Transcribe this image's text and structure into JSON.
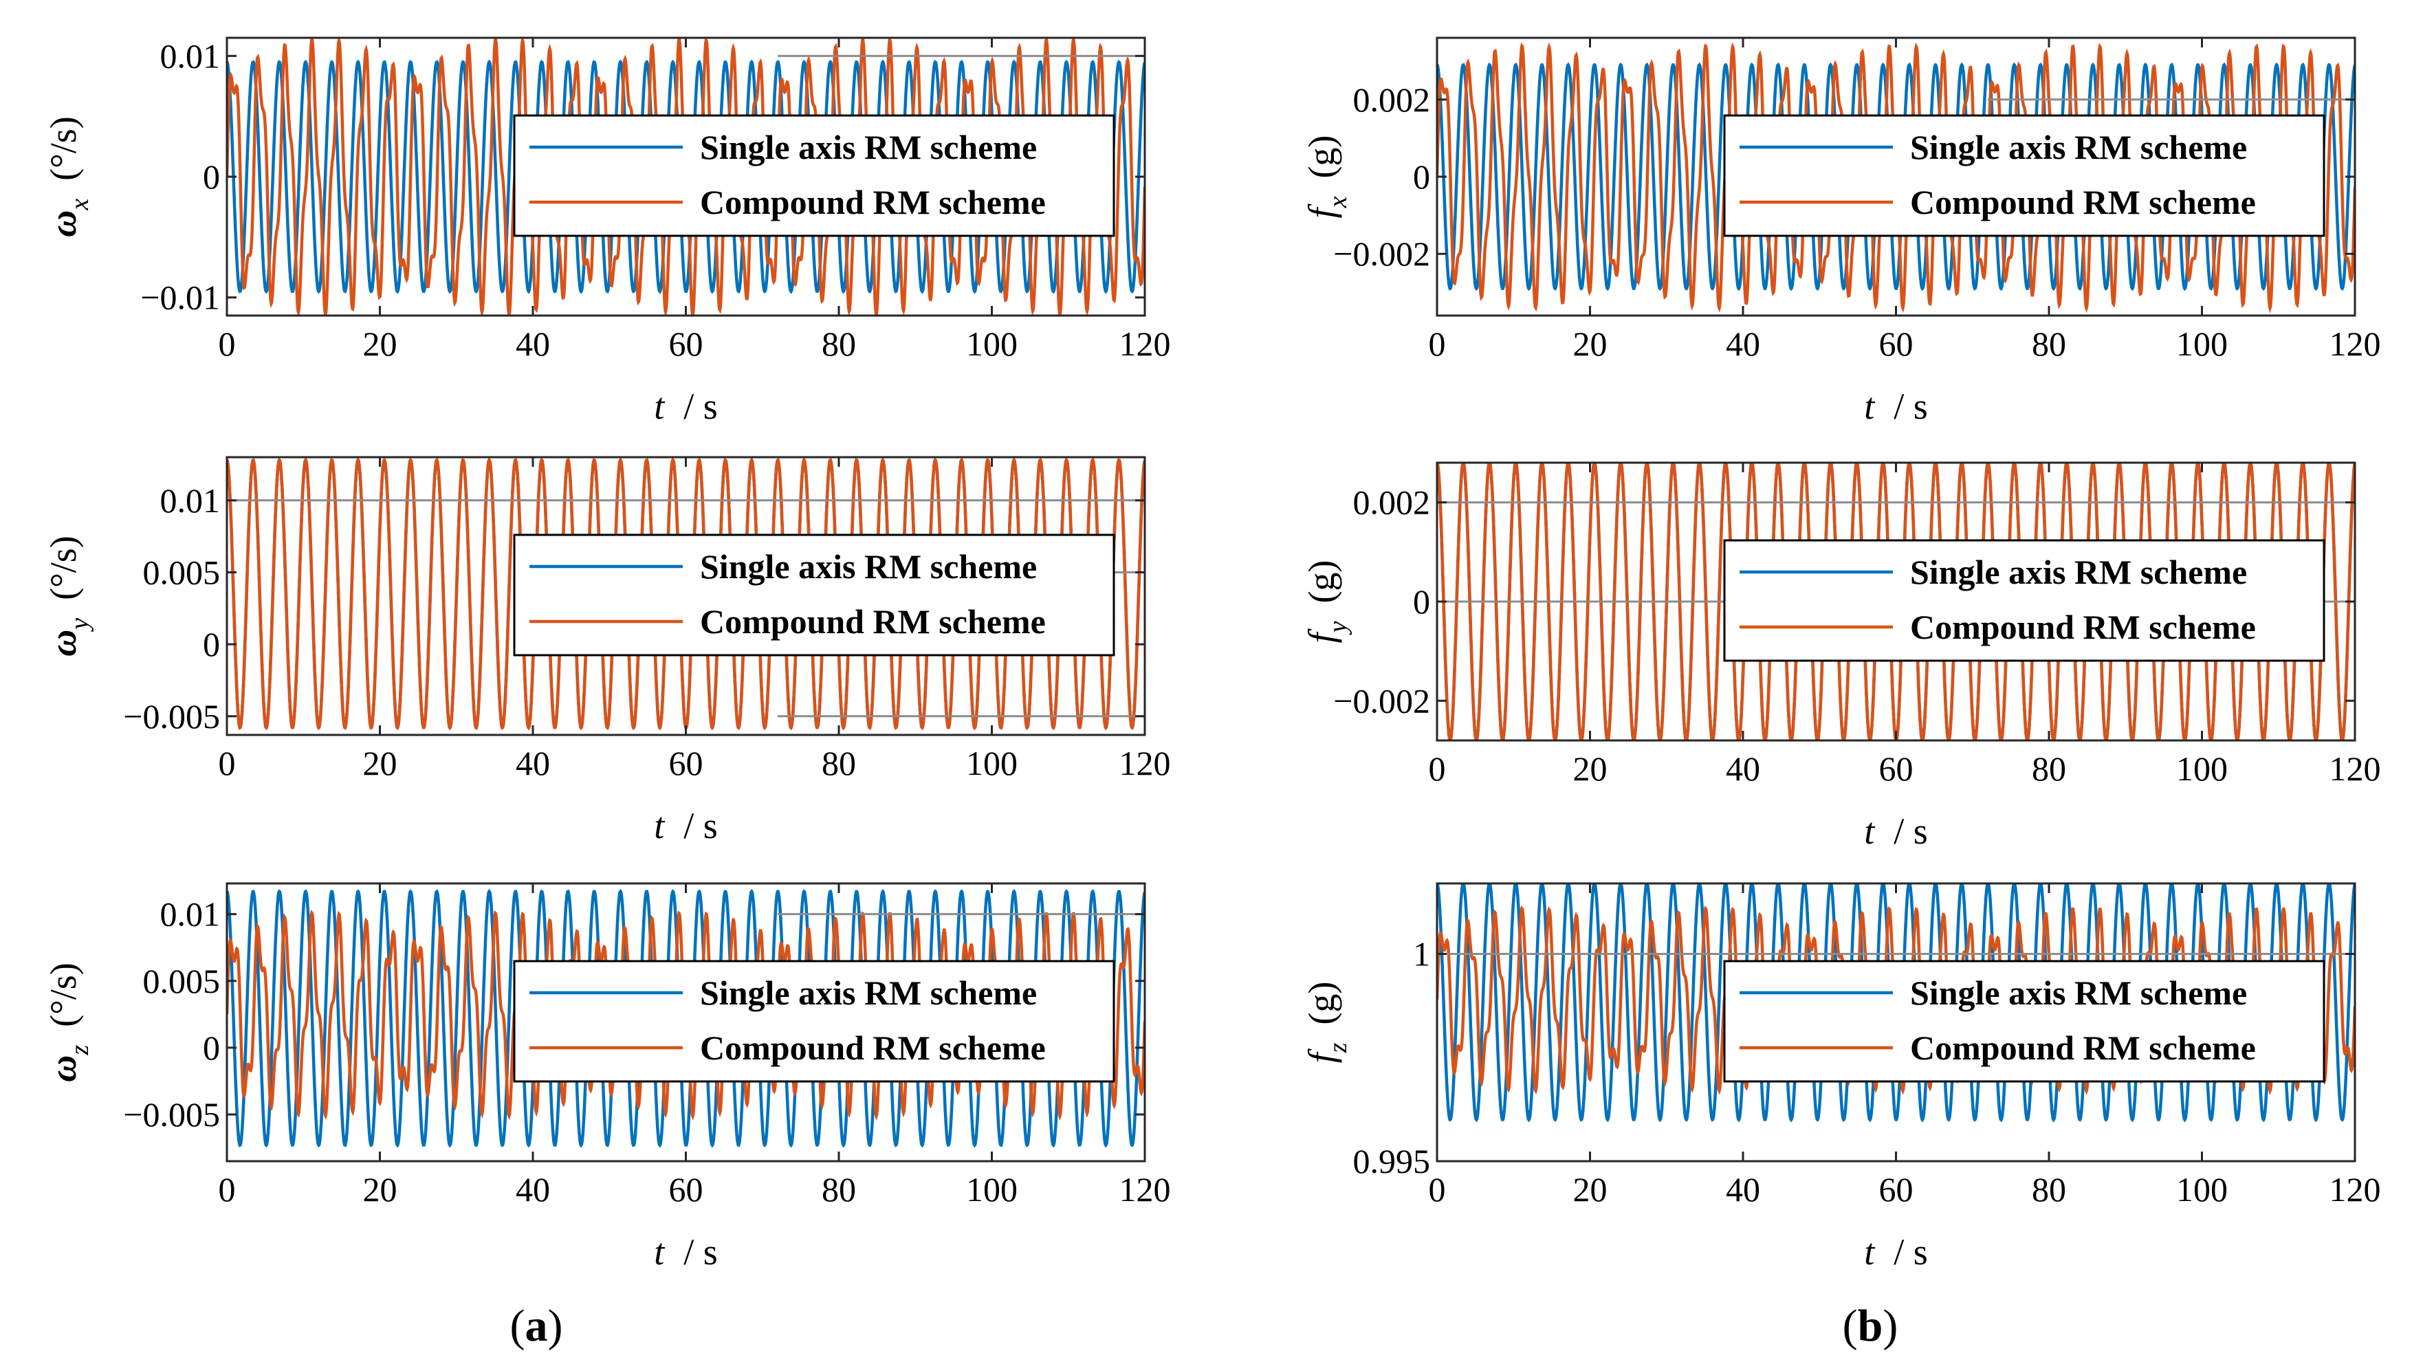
{
  "chart_data": [
    {
      "id": "wx",
      "type": "line",
      "column": "a",
      "ylabel": {
        "symbol": "ω",
        "sub": "x",
        "unit": "(°/s)"
      },
      "xlabel": {
        "symbol": "t",
        "unit": "/ s"
      },
      "xlim": [
        0,
        120
      ],
      "ylim": [
        -0.0115,
        0.0115
      ],
      "xticks": [
        0,
        20,
        40,
        60,
        80,
        100,
        120
      ],
      "yticks": [
        {
          "v": -0.01,
          "label": "−0.01"
        },
        {
          "v": 0,
          "label": "0"
        },
        {
          "v": 0.01,
          "label": "0.01"
        }
      ],
      "grid_ref": [
        {
          "y": 0.01,
          "from": 72
        }
      ],
      "series": [
        {
          "name": "Single axis RM scheme",
          "color": "#0072BD",
          "offset": 0,
          "components": [
            {
              "amp": 0.0095,
              "period": 3.43,
              "phase": 1.5708
            }
          ]
        },
        {
          "name": "Compound RM scheme",
          "color": "#D95319",
          "offset": 0,
          "components": [
            {
              "amp": 0.0092,
              "period": 3.43,
              "phase": 0
            },
            {
              "amp": 0.0022,
              "period": 1.2,
              "phase": 0
            }
          ]
        }
      ]
    },
    {
      "id": "wy",
      "type": "line",
      "column": "a",
      "ylabel": {
        "symbol": "ω",
        "sub": "y",
        "unit": "(°/s)"
      },
      "xlabel": {
        "symbol": "t",
        "unit": "/ s"
      },
      "xlim": [
        0,
        120
      ],
      "ylim": [
        -0.0063,
        0.013
      ],
      "xticks": [
        0,
        20,
        40,
        60,
        80,
        100,
        120
      ],
      "yticks": [
        {
          "v": -0.005,
          "label": "−0.005"
        },
        {
          "v": 0,
          "label": "0"
        },
        {
          "v": 0.005,
          "label": "0.005"
        },
        {
          "v": 0.01,
          "label": "0.01"
        }
      ],
      "grid_ref": [
        {
          "y": 0.01,
          "from": 0
        },
        {
          "y": 0.005,
          "from": 100
        },
        {
          "y": -0.005,
          "from": 72
        }
      ],
      "series": [
        {
          "name": "Single axis RM scheme",
          "color": "#0072BD",
          "offset": 0.0035,
          "components": [
            {
              "amp": 0.0093,
              "period": 3.43,
              "phase": 1.5708
            }
          ]
        },
        {
          "name": "Compound RM scheme",
          "color": "#D95319",
          "offset": 0.0035,
          "components": [
            {
              "amp": 0.0093,
              "period": 3.43,
              "phase": 1.5708
            }
          ]
        }
      ]
    },
    {
      "id": "wz",
      "type": "line",
      "column": "a",
      "ylabel": {
        "symbol": "ω",
        "sub": "z",
        "unit": "(°/s)"
      },
      "xlabel": {
        "symbol": "t",
        "unit": "/ s"
      },
      "xlim": [
        0,
        120
      ],
      "ylim": [
        -0.0085,
        0.0123
      ],
      "xticks": [
        0,
        20,
        40,
        60,
        80,
        100,
        120
      ],
      "yticks": [
        {
          "v": -0.005,
          "label": "−0.005"
        },
        {
          "v": 0,
          "label": "0"
        },
        {
          "v": 0.005,
          "label": "0.005"
        },
        {
          "v": 0.01,
          "label": "0.01"
        }
      ],
      "grid_ref": [
        {
          "y": 0.01,
          "from": 72
        }
      ],
      "series": [
        {
          "name": "Single axis RM scheme",
          "color": "#0072BD",
          "offset": 0.0022,
          "components": [
            {
              "amp": 0.0095,
              "period": 3.43,
              "phase": 1.5708
            }
          ]
        },
        {
          "name": "Compound RM scheme",
          "color": "#D95319",
          "offset": 0.0025,
          "components": [
            {
              "amp": 0.0058,
              "period": 3.43,
              "phase": 0
            },
            {
              "amp": 0.0018,
              "period": 1.2,
              "phase": 0
            }
          ]
        }
      ]
    },
    {
      "id": "fx",
      "type": "line",
      "column": "b",
      "ylabel": {
        "symbol": "f",
        "sub": "x",
        "unit": "(g)"
      },
      "xlabel": {
        "symbol": "t",
        "unit": "/ s"
      },
      "xlim": [
        0,
        120
      ],
      "ylim": [
        -0.0036,
        0.0036
      ],
      "xticks": [
        0,
        20,
        40,
        60,
        80,
        100,
        120
      ],
      "yticks": [
        {
          "v": -0.002,
          "label": "−0.002"
        },
        {
          "v": 0,
          "label": "0"
        },
        {
          "v": 0.002,
          "label": "0.002"
        }
      ],
      "grid_ref": [
        {
          "y": 0.002,
          "from": 72
        }
      ],
      "series": [
        {
          "name": "Single axis RM scheme",
          "color": "#0072BD",
          "offset": 0,
          "components": [
            {
              "amp": 0.0029,
              "period": 3.43,
              "phase": 1.5708
            }
          ]
        },
        {
          "name": "Compound RM scheme",
          "color": "#D95319",
          "offset": 0,
          "components": [
            {
              "amp": 0.0028,
              "period": 3.43,
              "phase": 0
            },
            {
              "amp": 0.0006,
              "period": 1.2,
              "phase": 0
            }
          ]
        }
      ]
    },
    {
      "id": "fy",
      "type": "line",
      "column": "b",
      "ylabel": {
        "symbol": "f",
        "sub": "y",
        "unit": "(g)"
      },
      "xlabel": {
        "symbol": "t",
        "unit": "/ s"
      },
      "xlim": [
        0,
        120
      ],
      "ylim": [
        -0.0028,
        0.0028
      ],
      "xticks": [
        0,
        20,
        40,
        60,
        80,
        100,
        120
      ],
      "yticks": [
        {
          "v": -0.002,
          "label": "−0.002"
        },
        {
          "v": 0,
          "label": "0"
        },
        {
          "v": 0.002,
          "label": "0.002"
        }
      ],
      "grid_ref": [
        {
          "y": 0.002,
          "from": 0
        },
        {
          "y": 0,
          "from": 0
        }
      ],
      "series": [
        {
          "name": "Single axis RM scheme",
          "color": "#0072BD",
          "offset": 0,
          "components": [
            {
              "amp": 0.0028,
              "period": 3.43,
              "phase": 1.5708
            }
          ]
        },
        {
          "name": "Compound RM scheme",
          "color": "#D95319",
          "offset": 0,
          "components": [
            {
              "amp": 0.0028,
              "period": 3.43,
              "phase": 1.5708
            }
          ]
        }
      ]
    },
    {
      "id": "fz",
      "type": "line",
      "column": "b",
      "ylabel": {
        "symbol": "f",
        "sub": "z",
        "unit": "(g)"
      },
      "xlabel": {
        "symbol": "t",
        "unit": "/ s"
      },
      "xlim": [
        0,
        120
      ],
      "ylim": [
        0.995,
        1.0017
      ],
      "xticks": [
        0,
        20,
        40,
        60,
        80,
        100,
        120
      ],
      "yticks": [
        {
          "v": 0.995,
          "label": "0.995"
        },
        {
          "v": 1,
          "label": "1"
        }
      ],
      "grid_ref": [
        {
          "y": 1,
          "from": 0
        }
      ],
      "series": [
        {
          "name": "Single axis RM scheme",
          "color": "#0072BD",
          "offset": 0.99885,
          "components": [
            {
              "amp": 0.00285,
              "period": 3.43,
              "phase": 1.5708
            }
          ]
        },
        {
          "name": "Compound RM scheme",
          "color": "#D95319",
          "offset": 0.9989,
          "components": [
            {
              "amp": 0.0017,
              "period": 3.43,
              "phase": 0
            },
            {
              "amp": 0.0005,
              "period": 1.2,
              "phase": 0
            }
          ]
        }
      ]
    }
  ],
  "panel_labels": {
    "a": "a",
    "b": "b"
  }
}
